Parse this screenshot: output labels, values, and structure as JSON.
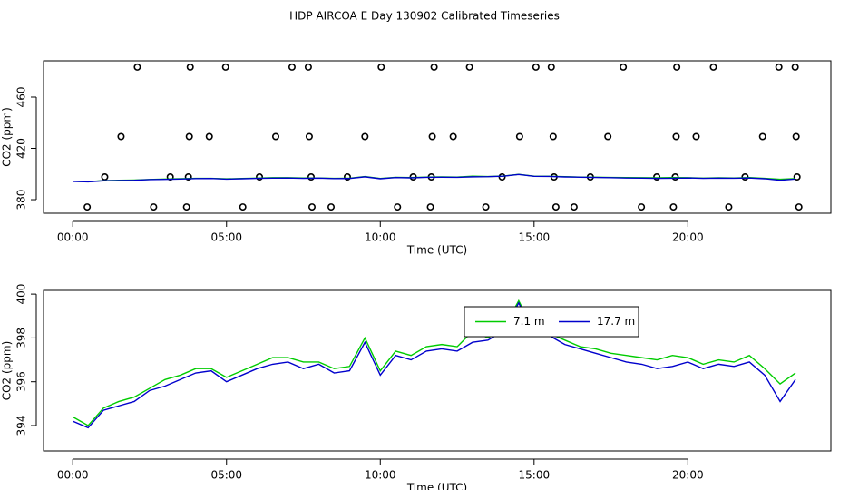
{
  "title": "HDP AIRCOA E  Day 130902  Calibrated Timeseries",
  "chart_data": [
    {
      "type": "line",
      "xlabel": "Time (UTC)",
      "ylabel": "CO2 (ppm)",
      "xlim": [
        -0.95,
        24.65
      ],
      "ylim": [
        369.4,
        488.3
      ],
      "xticks": [
        {
          "value": 0,
          "label": "00:00"
        },
        {
          "value": 5,
          "label": "05:00"
        },
        {
          "value": 10,
          "label": "10:00"
        },
        {
          "value": 15,
          "label": "15:00"
        },
        {
          "value": 20,
          "label": "20:00"
        }
      ],
      "yticks": [
        380,
        420,
        460
      ],
      "series": [
        {
          "type": "scatter",
          "color": "#000000",
          "x": [
            2.1,
            3.82,
            4.97,
            7.13,
            7.66,
            10.03,
            11.75,
            12.9,
            15.06,
            15.56,
            17.9,
            19.64,
            20.83,
            22.96,
            23.49,
            1.57,
            3.79,
            4.44,
            6.6,
            7.69,
            9.5,
            11.69,
            12.37,
            14.53,
            15.62,
            17.4,
            19.62,
            20.27,
            22.43,
            23.52,
            1.04,
            3.17,
            3.76,
            6.07,
            7.75,
            8.93,
            11.07,
            11.66,
            13.96,
            15.65,
            16.83,
            18.99,
            19.59,
            21.86,
            23.55,
            0.47,
            2.63,
            3.7,
            5.53,
            7.78,
            8.4,
            10.56,
            11.63,
            13.43,
            15.71,
            16.3,
            18.49,
            19.53,
            21.33,
            23.61
          ],
          "values": [
            483.4,
            483.4,
            483.4,
            483.4,
            483.4,
            483.4,
            483.4,
            483.4,
            483.4,
            483.4,
            483.4,
            483.4,
            483.4,
            483.4,
            483.4,
            429.2,
            429.2,
            429.2,
            429.2,
            429.2,
            429.2,
            429.2,
            429.2,
            429.2,
            429.2,
            429.2,
            429.2,
            429.2,
            429.2,
            429.2,
            397.7,
            397.7,
            397.7,
            397.7,
            397.7,
            397.7,
            397.7,
            397.7,
            397.7,
            397.7,
            397.7,
            397.7,
            397.7,
            397.7,
            397.7,
            374.3,
            374.3,
            374.3,
            374.3,
            374.3,
            374.3,
            374.3,
            374.3,
            374.3,
            374.3,
            374.3,
            374.3,
            374.3,
            374.3,
            374.3
          ]
        },
        {
          "type": "line",
          "color": "#00cc00",
          "x": [
            0,
            0.5,
            1,
            1.5,
            2,
            2.5,
            3,
            3.5,
            4,
            4.5,
            5,
            5.5,
            6,
            6.5,
            7,
            7.5,
            8,
            8.5,
            9,
            9.5,
            10,
            10.5,
            11,
            11.5,
            12,
            12.5,
            13,
            13.5,
            14,
            14.5,
            15,
            15.5,
            16,
            16.5,
            17,
            17.5,
            18,
            18.5,
            19,
            19.5,
            20,
            20.5,
            21,
            21.5,
            22,
            22.5,
            23,
            23.5
          ],
          "values": [
            394.4,
            394.0,
            394.8,
            395.1,
            395.3,
            395.7,
            396.1,
            396.3,
            396.6,
            396.6,
            396.2,
            396.5,
            396.8,
            397.1,
            397.1,
            396.9,
            396.9,
            396.6,
            396.7,
            398.0,
            396.5,
            397.4,
            397.2,
            397.6,
            397.7,
            397.6,
            398.3,
            398.0,
            398.4,
            399.7,
            398.3,
            398.2,
            397.9,
            397.6,
            397.5,
            397.3,
            397.2,
            397.1,
            397.0,
            397.2,
            397.1,
            396.8,
            397.0,
            396.9,
            397.2,
            396.6,
            395.9,
            396.4
          ]
        },
        {
          "type": "line",
          "color": "#0000cc",
          "x": [
            0,
            0.5,
            1,
            1.5,
            2,
            2.5,
            3,
            3.5,
            4,
            4.5,
            5,
            5.5,
            6,
            6.5,
            7,
            7.5,
            8,
            8.5,
            9,
            9.5,
            10,
            10.5,
            11,
            11.5,
            12,
            12.5,
            13,
            13.5,
            14,
            14.5,
            15,
            15.5,
            16,
            16.5,
            17,
            17.5,
            18,
            18.5,
            19,
            19.5,
            20,
            20.5,
            21,
            21.5,
            22,
            22.5,
            23,
            23.5
          ],
          "values": [
            394.2,
            393.9,
            394.7,
            394.9,
            395.1,
            395.6,
            395.8,
            396.1,
            396.4,
            396.5,
            396.0,
            396.3,
            396.6,
            396.8,
            396.9,
            396.6,
            396.8,
            396.4,
            396.5,
            397.8,
            396.3,
            397.2,
            397.0,
            397.4,
            397.5,
            397.4,
            397.8,
            397.9,
            398.3,
            399.6,
            398.2,
            398.1,
            397.7,
            397.5,
            397.3,
            397.1,
            396.9,
            396.8,
            396.6,
            396.7,
            396.9,
            396.6,
            396.8,
            396.7,
            396.9,
            396.3,
            395.1,
            396.1
          ]
        }
      ]
    },
    {
      "type": "line",
      "xlabel": "Time (UTC)",
      "ylabel": "CO2 (ppm)",
      "xlim": [
        -0.95,
        24.65
      ],
      "ylim": [
        392.84,
        400.17
      ],
      "xticks": [
        {
          "value": 0,
          "label": "00:00"
        },
        {
          "value": 5,
          "label": "05:00"
        },
        {
          "value": 10,
          "label": "10:00"
        },
        {
          "value": 15,
          "label": "15:00"
        },
        {
          "value": 20,
          "label": "20:00"
        }
      ],
      "yticks": [
        394,
        396,
        398,
        400
      ],
      "legend": "top",
      "series": [
        {
          "name": "7.1 m",
          "type": "line",
          "color": "#00cc00",
          "x": [
            0,
            0.5,
            1,
            1.5,
            2,
            2.5,
            3,
            3.5,
            4,
            4.5,
            5,
            5.5,
            6,
            6.5,
            7,
            7.5,
            8,
            8.5,
            9,
            9.5,
            10,
            10.5,
            11,
            11.5,
            12,
            12.5,
            13,
            13.5,
            14,
            14.5,
            15,
            15.5,
            16,
            16.5,
            17,
            17.5,
            18,
            18.5,
            19,
            19.5,
            20,
            20.5,
            21,
            21.5,
            22,
            22.5,
            23,
            23.5
          ],
          "values": [
            394.4,
            394.0,
            394.8,
            395.1,
            395.3,
            395.7,
            396.1,
            396.3,
            396.6,
            396.6,
            396.2,
            396.5,
            396.8,
            397.1,
            397.1,
            396.9,
            396.9,
            396.6,
            396.7,
            398.0,
            396.5,
            397.4,
            397.2,
            397.6,
            397.7,
            397.6,
            398.3,
            398.0,
            398.4,
            399.7,
            398.3,
            398.2,
            397.9,
            397.6,
            397.5,
            397.3,
            397.2,
            397.1,
            397.0,
            397.2,
            397.1,
            396.8,
            397.0,
            396.9,
            397.2,
            396.6,
            395.9,
            396.4
          ]
        },
        {
          "name": "17.7 m",
          "type": "line",
          "color": "#0000cc",
          "x": [
            0,
            0.5,
            1,
            1.5,
            2,
            2.5,
            3,
            3.5,
            4,
            4.5,
            5,
            5.5,
            6,
            6.5,
            7,
            7.5,
            8,
            8.5,
            9,
            9.5,
            10,
            10.5,
            11,
            11.5,
            12,
            12.5,
            13,
            13.5,
            14,
            14.5,
            15,
            15.5,
            16,
            16.5,
            17,
            17.5,
            18,
            18.5,
            19,
            19.5,
            20,
            20.5,
            21,
            21.5,
            22,
            22.5,
            23,
            23.5
          ],
          "values": [
            394.2,
            393.9,
            394.7,
            394.9,
            395.1,
            395.6,
            395.8,
            396.1,
            396.4,
            396.5,
            396.0,
            396.3,
            396.6,
            396.8,
            396.9,
            396.6,
            396.8,
            396.4,
            396.5,
            397.8,
            396.3,
            397.2,
            397.0,
            397.4,
            397.5,
            397.4,
            397.8,
            397.9,
            398.3,
            399.6,
            398.2,
            398.1,
            397.7,
            397.5,
            397.3,
            397.1,
            396.9,
            396.8,
            396.6,
            396.7,
            396.9,
            396.6,
            396.8,
            396.7,
            396.9,
            396.3,
            395.1,
            396.1
          ]
        }
      ]
    }
  ]
}
